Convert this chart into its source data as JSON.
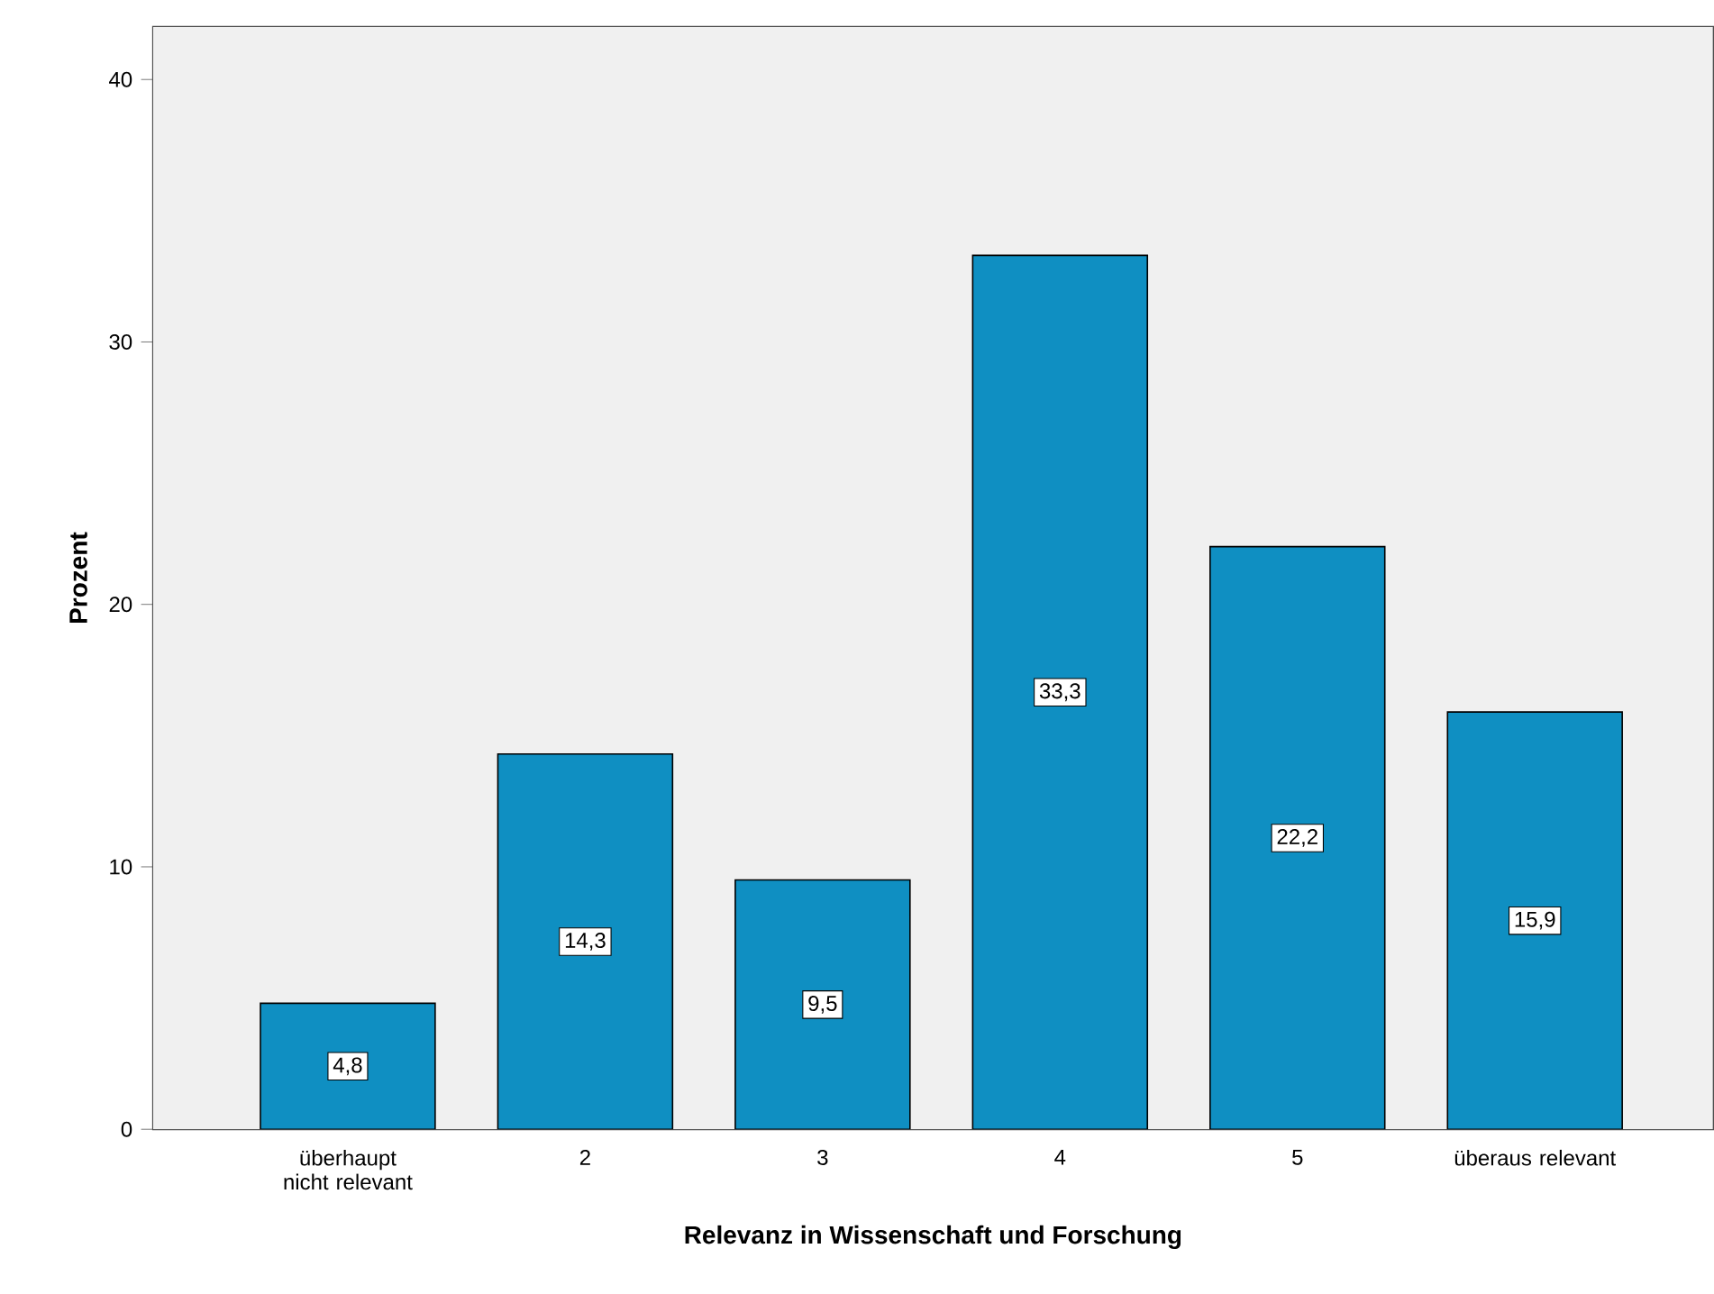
{
  "chart_data": {
    "type": "bar",
    "xlabel": "Relevanz in Wissenschaft und Forschung",
    "ylabel": "Prozent",
    "categories": [
      "überhaupt nicht relevant",
      "2",
      "3",
      "4",
      "5",
      "überaus relevant"
    ],
    "values": [
      4.8,
      14.3,
      9.5,
      33.3,
      22.2,
      15.9
    ],
    "value_labels": [
      "4,8",
      "14,3",
      "9,5",
      "33,3",
      "22,2",
      "15,9"
    ],
    "color": "#0f8fc2",
    "ylim": [
      0,
      42
    ],
    "yticks": [
      0,
      10,
      20,
      30,
      40
    ]
  }
}
